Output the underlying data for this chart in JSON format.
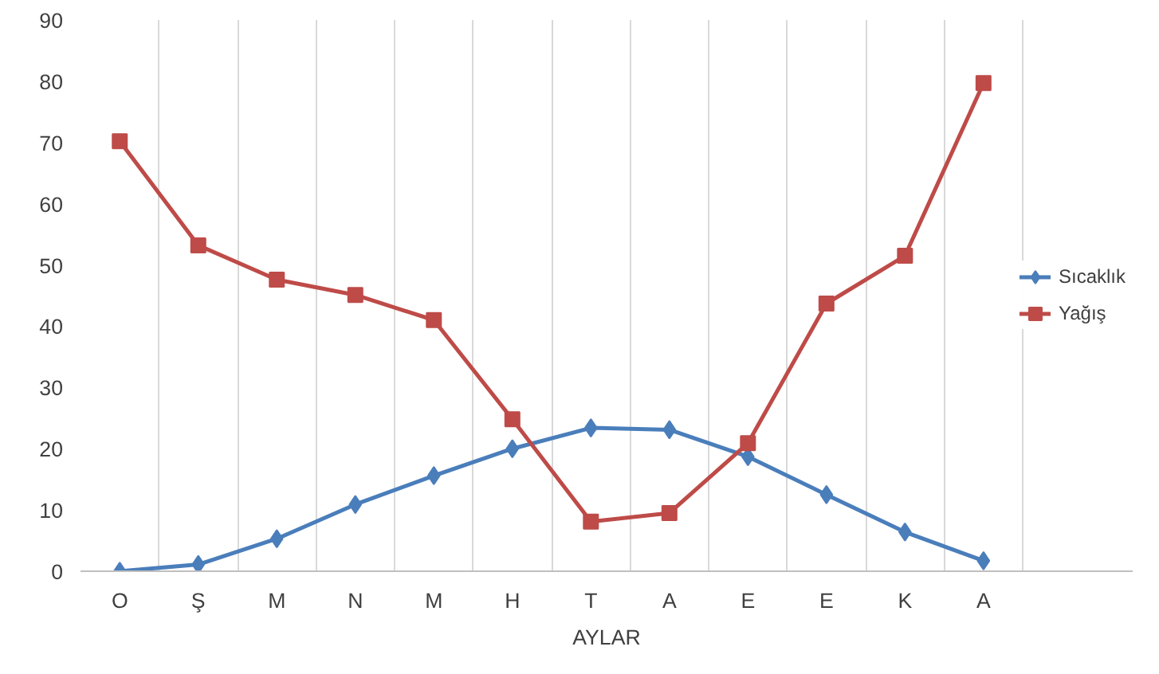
{
  "chart_data": {
    "type": "line",
    "xlabel": "AYLAR",
    "categories": [
      "O",
      "Ş",
      "M",
      "N",
      "M",
      "H",
      "T",
      "A",
      "E",
      "E",
      "K",
      "A"
    ],
    "series": [
      {
        "name": "Sıcaklık",
        "color": "#4a7ebb",
        "marker": "diamond",
        "values": [
          0,
          1.1,
          5.3,
          10.9,
          15.6,
          20,
          23.4,
          23.1,
          18.7,
          12.5,
          6.4,
          1.7
        ]
      },
      {
        "name": "Yağış",
        "color": "#be4b48",
        "marker": "square",
        "values": [
          70.2,
          53.2,
          47.6,
          45.1,
          41,
          24.8,
          8.1,
          9.5,
          20.9,
          43.7,
          51.5,
          79.7
        ]
      }
    ],
    "ylim": [
      0,
      90
    ],
    "yticks": [
      0,
      10,
      20,
      30,
      40,
      50,
      60,
      70,
      80,
      90
    ],
    "grid": "x",
    "legend": "right",
    "line_style": "solid"
  }
}
